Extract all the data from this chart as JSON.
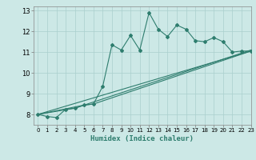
{
  "xlabel": "Humidex (Indice chaleur)",
  "xlim": [
    -0.5,
    23
  ],
  "ylim": [
    7.5,
    13.2
  ],
  "yticks": [
    8,
    9,
    10,
    11,
    12,
    13
  ],
  "xticks": [
    0,
    1,
    2,
    3,
    4,
    5,
    6,
    7,
    8,
    9,
    10,
    11,
    12,
    13,
    14,
    15,
    16,
    17,
    18,
    19,
    20,
    21,
    22,
    23
  ],
  "bg_color": "#cce8e6",
  "line_color": "#2e7d6e",
  "series1_x": [
    0,
    1,
    2,
    3,
    4,
    5,
    6,
    7,
    8,
    9,
    10,
    11,
    12,
    13,
    14,
    15,
    16,
    17,
    18,
    19,
    20,
    21,
    22,
    23
  ],
  "series1_y": [
    8.0,
    7.9,
    7.85,
    8.25,
    8.3,
    8.45,
    8.5,
    9.35,
    11.35,
    11.1,
    11.8,
    11.1,
    12.9,
    12.1,
    11.75,
    12.3,
    12.1,
    11.55,
    11.5,
    11.7,
    11.5,
    11.0,
    11.05,
    11.05
  ],
  "series2_x": [
    0,
    4,
    5,
    6,
    23
  ],
  "series2_y": [
    8.0,
    8.3,
    8.45,
    8.5,
    11.05
  ],
  "series3_x": [
    0,
    5,
    23
  ],
  "series3_y": [
    8.0,
    8.45,
    11.1
  ],
  "series4_x": [
    0,
    23
  ],
  "series4_y": [
    8.0,
    11.05
  ]
}
